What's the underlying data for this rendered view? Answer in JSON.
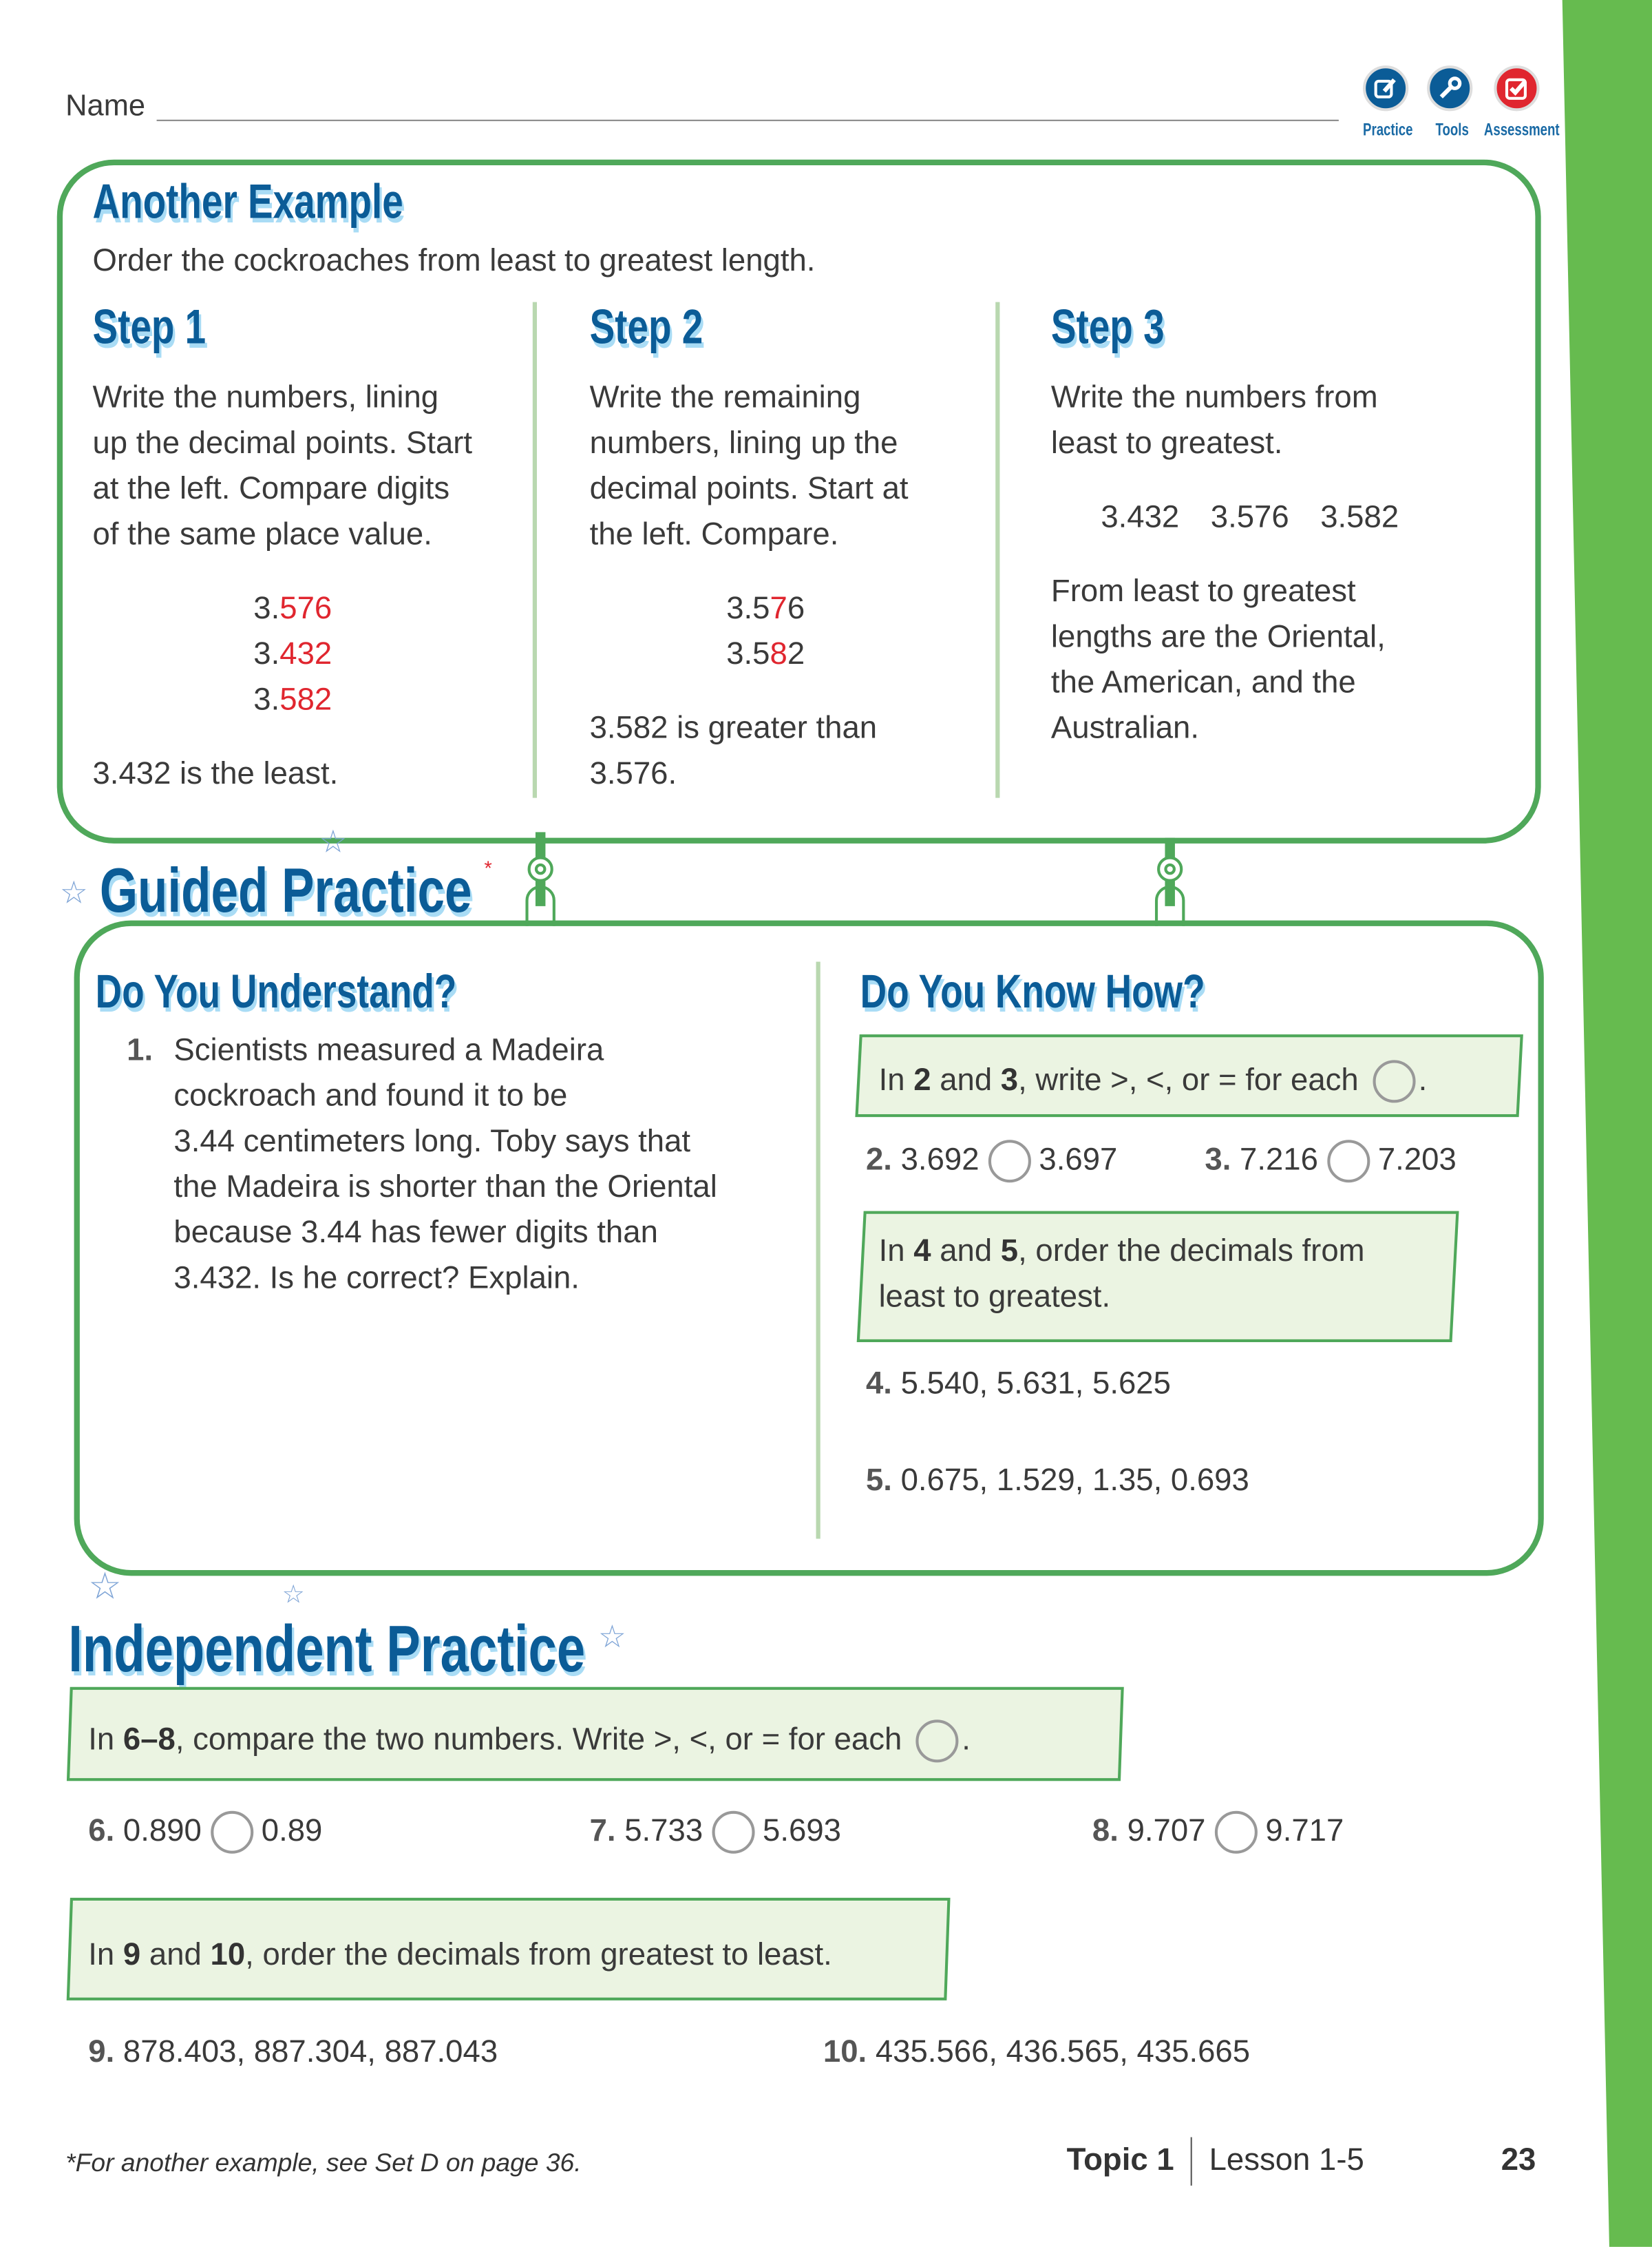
{
  "header": {
    "name_label": "Name",
    "icons": [
      {
        "name": "practice-icon",
        "label": "Practice",
        "color": "#0b5c97"
      },
      {
        "name": "tools-icon",
        "label": "Tools",
        "color": "#0b5c97"
      },
      {
        "name": "assessment-icon",
        "label": "Assessment",
        "color": "#e0262f"
      }
    ]
  },
  "colors": {
    "accent_green": "#4fa85a",
    "side_bar": "#66bb4f",
    "heading_blue": "#0b5c97",
    "highlight_red": "#e0262f"
  },
  "another_example": {
    "title": "Another Example",
    "intro": "Order the cockroaches from least to greatest length.",
    "step1": {
      "title": "Step 1",
      "lines": [
        "Write the numbers, lining",
        "up the decimal points. Start",
        "at the left. Compare digits",
        "of the same place value."
      ],
      "numbers": [
        [
          "3.",
          "576"
        ],
        [
          "3.",
          "432"
        ],
        [
          "3.",
          "582"
        ]
      ],
      "conclusion": "3.432 is the least."
    },
    "step2": {
      "title": "Step 2",
      "lines": [
        "Write the remaining",
        "numbers, lining up the",
        "decimal points. Start at",
        "the left. Compare."
      ],
      "numbers": [
        [
          "3.5",
          "7",
          "6"
        ],
        [
          "3.5",
          "8",
          "2"
        ]
      ],
      "conclusion": [
        "3.582 is greater than",
        "3.576."
      ]
    },
    "step3": {
      "title": "Step 3",
      "lines": [
        "Write the numbers from",
        "least to greatest."
      ],
      "numbers": [
        "3.432",
        "3.576",
        "3.582"
      ],
      "conclusion": [
        "From least to greatest",
        "lengths are the Oriental,",
        "the American, and the",
        "Australian."
      ]
    }
  },
  "guided": {
    "title": "Guided Practice",
    "asterisk": "*",
    "understand": {
      "title": "Do You Understand?",
      "q_num": "1.",
      "lines": [
        "Scientists measured a Madeira",
        "cockroach and found it to be",
        "3.44 centimeters long. Toby says that",
        "the Madeira is shorter than the Oriental",
        "because 3.44 has fewer digits than",
        "3.432. Is he correct? Explain."
      ]
    },
    "know_how": {
      "title": "Do You Know How?",
      "banner1": {
        "pre": "In ",
        "a": "2",
        "mid": " and ",
        "b": "3",
        "post": ", write >, <, or = for each",
        "end": "."
      },
      "q2": {
        "num": "2.",
        "left": "3.692",
        "right": "3.697"
      },
      "q3": {
        "num": "3.",
        "left": "7.216",
        "right": "7.203"
      },
      "banner2": {
        "pre": "In ",
        "a": "4",
        "mid": " and ",
        "b": "5",
        "post": ", order the decimals from",
        "line2": "least to greatest."
      },
      "q4": {
        "num": "4.",
        "text": "5.540, 5.631, 5.625"
      },
      "q5": {
        "num": "5.",
        "text": "0.675, 1.529, 1.35, 0.693"
      }
    }
  },
  "independent": {
    "title": "Independent Practice",
    "banner1": {
      "pre": "In ",
      "a": "6–8",
      "post": ", compare the two numbers. Write >, <, or = for each",
      "end": "."
    },
    "q6": {
      "num": "6.",
      "left": "0.890",
      "right": "0.89"
    },
    "q7": {
      "num": "7.",
      "left": "5.733",
      "right": "5.693"
    },
    "q8": {
      "num": "8.",
      "left": "9.707",
      "right": "9.717"
    },
    "banner2": {
      "pre": "In ",
      "a": "9",
      "mid": " and ",
      "b": "10",
      "post": ", order the decimals from greatest to least."
    },
    "q9": {
      "num": "9.",
      "text": "878.403, 887.304, 887.043"
    },
    "q10": {
      "num": "10.",
      "text": "435.566, 436.565, 435.665"
    }
  },
  "footer": {
    "note": "*For another example, see Set D on page 36.",
    "topic": "Topic 1",
    "lesson": "Lesson 1-5",
    "page": "23"
  }
}
